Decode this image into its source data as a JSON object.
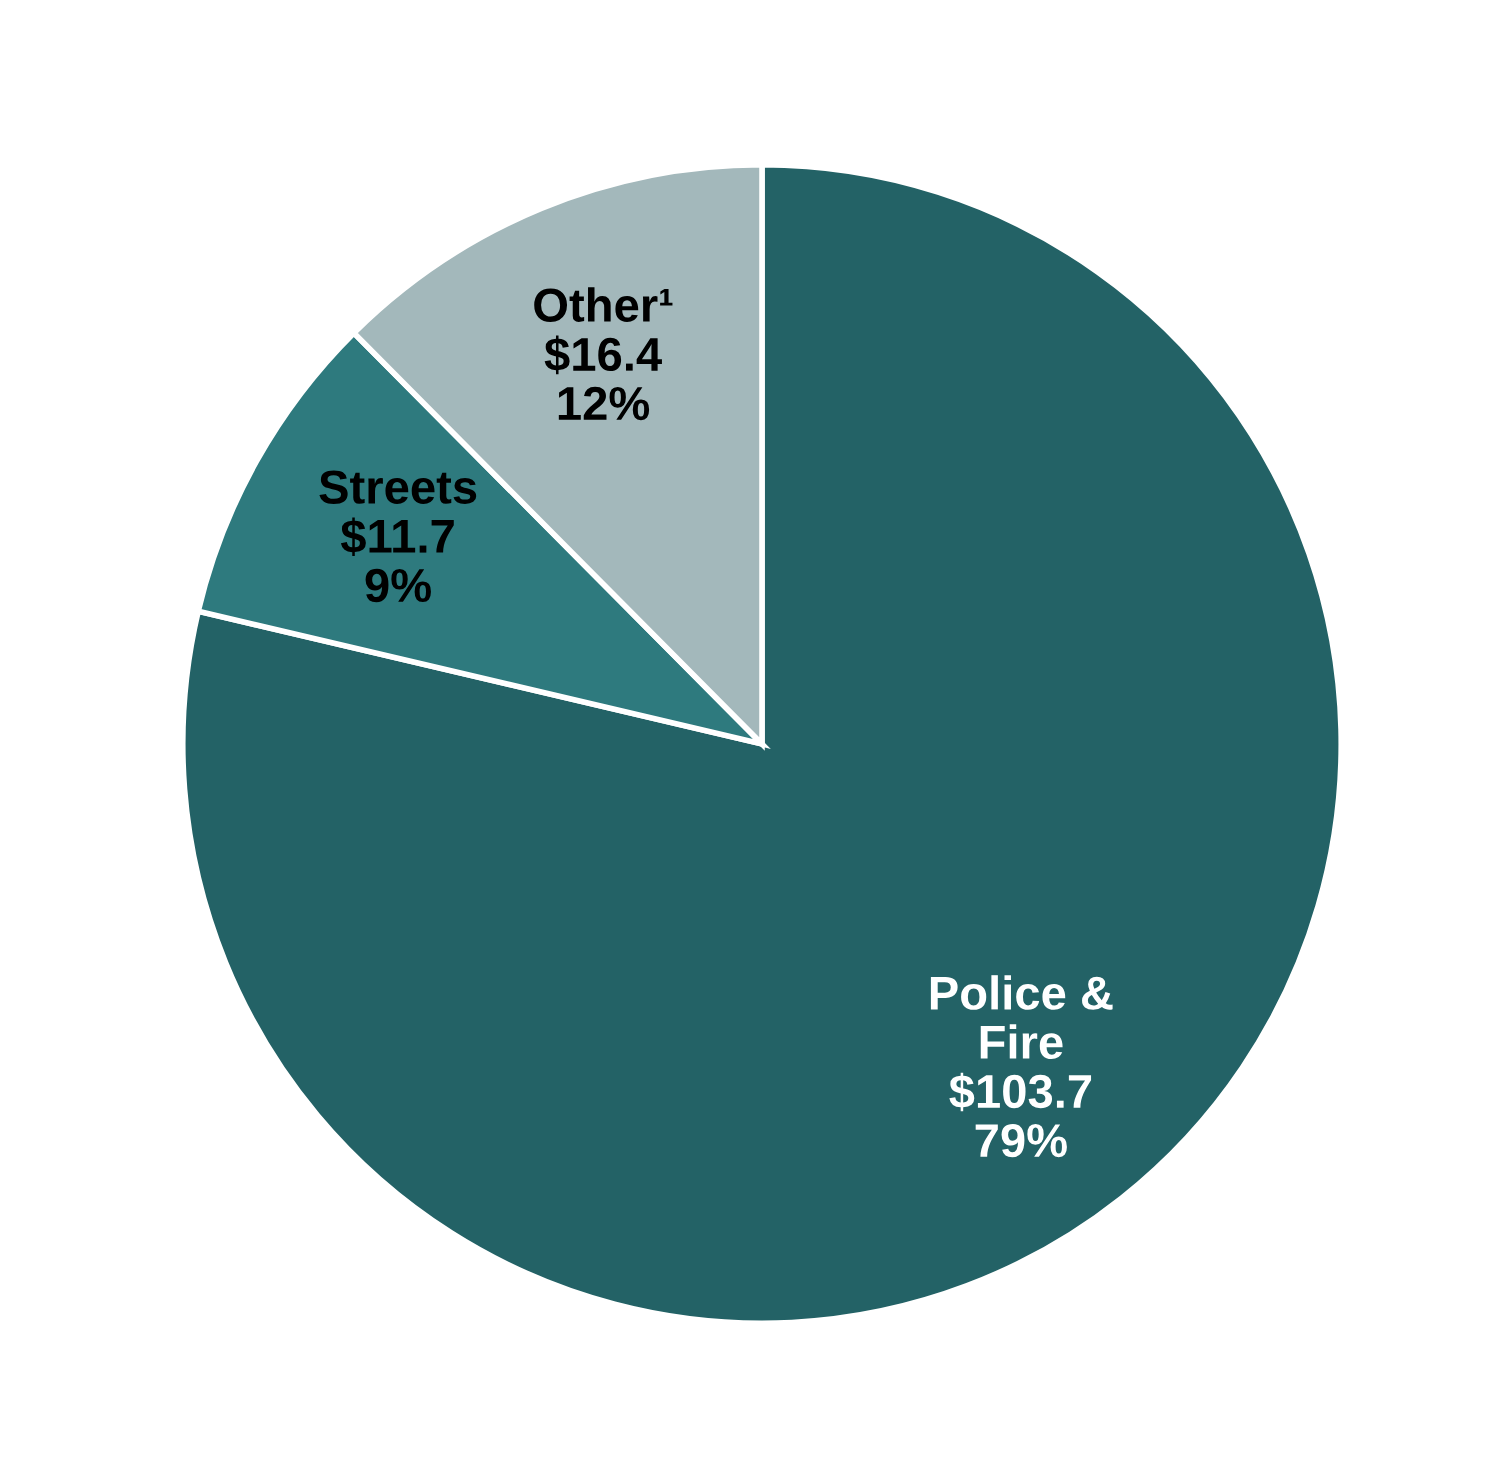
{
  "chart_data": {
    "type": "pie",
    "categories": [
      "Police &\nFire",
      "Streets",
      "Other¹"
    ],
    "values": [
      103.7,
      11.7,
      16.4
    ],
    "colors": [
      "#236266",
      "#2e7a7e",
      "#a3b8bb"
    ],
    "value_labels": [
      "$103.7\n79%",
      "$11.7\n9%",
      "$16.4\n12%"
    ]
  }
}
